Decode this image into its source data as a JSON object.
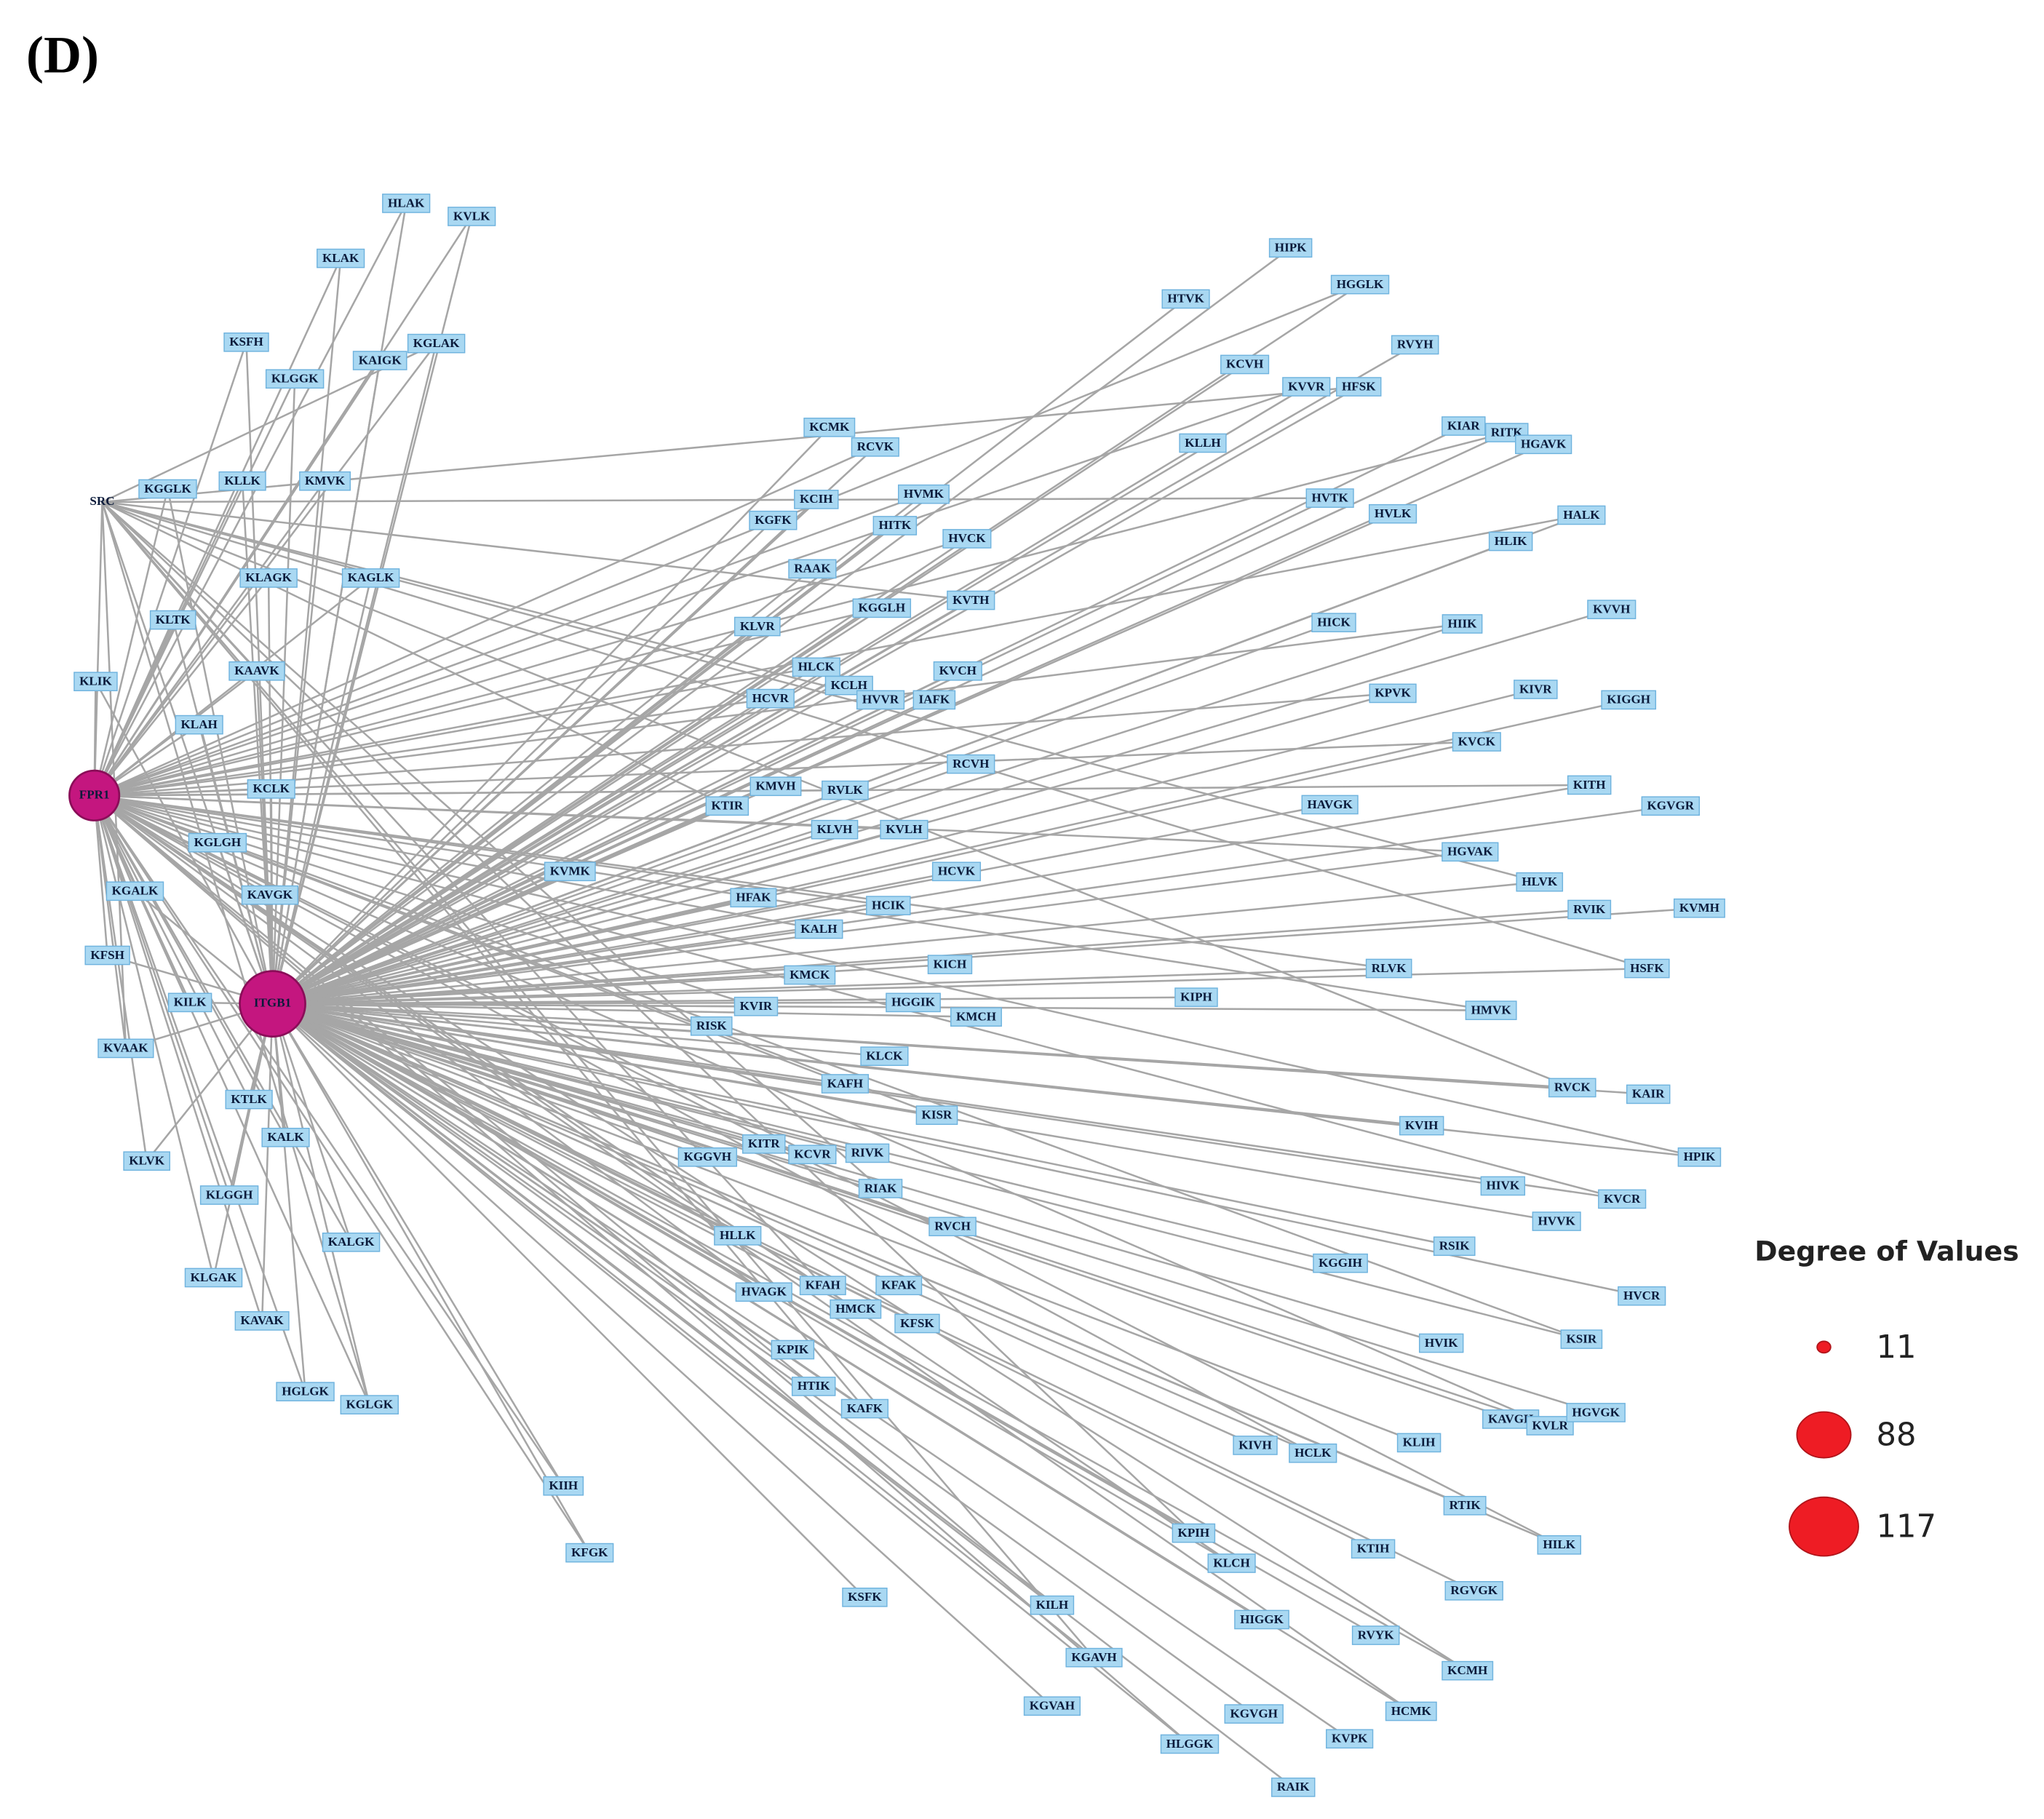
{
  "title": "(D)",
  "hubs": [
    {
      "label": "FPR1"
    },
    {
      "label": "ITGB1"
    },
    {
      "label": "SRC"
    }
  ],
  "nodes": [
    {
      "label": "HLAK"
    },
    {
      "label": "KVLK"
    },
    {
      "label": "KLAK"
    },
    {
      "label": "KSFH"
    },
    {
      "label": "KGLAK"
    },
    {
      "label": "KLGGK"
    },
    {
      "label": "KAIGK"
    },
    {
      "label": "KGGLK"
    },
    {
      "label": "KLLK"
    },
    {
      "label": "KMVK"
    },
    {
      "label": "KLAGK"
    },
    {
      "label": "KAGLK"
    },
    {
      "label": "KLTK"
    },
    {
      "label": "KAAVK"
    },
    {
      "label": "KLIK"
    },
    {
      "label": "KLAH"
    },
    {
      "label": "KCLK"
    },
    {
      "label": "KGLGH"
    },
    {
      "label": "KAVGK"
    },
    {
      "label": "KGALK"
    },
    {
      "label": "KFSH"
    },
    {
      "label": "KILK"
    },
    {
      "label": "KVAAK"
    },
    {
      "label": "KTLK"
    },
    {
      "label": "KALK"
    },
    {
      "label": "KLVK"
    },
    {
      "label": "KLGGH"
    },
    {
      "label": "KALGK"
    },
    {
      "label": "KLGAK"
    },
    {
      "label": "KAVAK"
    },
    {
      "label": "HGLGK"
    },
    {
      "label": "KGLGK"
    },
    {
      "label": "KIIH"
    },
    {
      "label": "KFGK"
    },
    {
      "label": "HIPK"
    },
    {
      "label": "HTVK"
    },
    {
      "label": "HGGLK"
    },
    {
      "label": "RVYH"
    },
    {
      "label": "KCVH"
    },
    {
      "label": "KVVR"
    },
    {
      "label": "HFSK"
    },
    {
      "label": "KIAR"
    },
    {
      "label": "RITK"
    },
    {
      "label": "HGAVK"
    },
    {
      "label": "KCMK"
    },
    {
      "label": "RCVK"
    },
    {
      "label": "KLLH"
    },
    {
      "label": "KCIH"
    },
    {
      "label": "HVMK"
    },
    {
      "label": "HVTK"
    },
    {
      "label": "HVLK"
    },
    {
      "label": "HALK"
    },
    {
      "label": "KGFK"
    },
    {
      "label": "HITK"
    },
    {
      "label": "HVCK"
    },
    {
      "label": "HLIK"
    },
    {
      "label": "RAAK"
    },
    {
      "label": "KGGLH"
    },
    {
      "label": "KVTH"
    },
    {
      "label": "HICK"
    },
    {
      "label": "HIIK"
    },
    {
      "label": "KVVH"
    },
    {
      "label": "KLVR"
    },
    {
      "label": "HLCK"
    },
    {
      "label": "KVCH"
    },
    {
      "label": "KCLH"
    },
    {
      "label": "HCVR"
    },
    {
      "label": "HVVR"
    },
    {
      "label": "IAFK"
    },
    {
      "label": "KPVK"
    },
    {
      "label": "KIVR"
    },
    {
      "label": "KIGGH"
    },
    {
      "label": "KVCK"
    },
    {
      "label": "RCVH"
    },
    {
      "label": "KMVH"
    },
    {
      "label": "RVLK"
    },
    {
      "label": "KTIR"
    },
    {
      "label": "HAVGK"
    },
    {
      "label": "KITH"
    },
    {
      "label": "KGVGR"
    },
    {
      "label": "KLVH"
    },
    {
      "label": "KVLH"
    },
    {
      "label": "KVMK"
    },
    {
      "label": "HCVK"
    },
    {
      "label": "HGVAK"
    },
    {
      "label": "HLVK"
    },
    {
      "label": "HFAK"
    },
    {
      "label": "HCIK"
    },
    {
      "label": "RVIK"
    },
    {
      "label": "KVMH"
    },
    {
      "label": "KALH"
    },
    {
      "label": "KICH"
    },
    {
      "label": "KMCK"
    },
    {
      "label": "RLVK"
    },
    {
      "label": "HSFK"
    },
    {
      "label": "KIPH"
    },
    {
      "label": "KVIR"
    },
    {
      "label": "HGGIK"
    },
    {
      "label": "KMCH"
    },
    {
      "label": "HMVK"
    },
    {
      "label": "RISK"
    },
    {
      "label": "KLCK"
    },
    {
      "label": "KAFH"
    },
    {
      "label": "RVCK"
    },
    {
      "label": "KAIR"
    },
    {
      "label": "KISR"
    },
    {
      "label": "KVIH"
    },
    {
      "label": "KITR"
    },
    {
      "label": "KCVR"
    },
    {
      "label": "RIVK"
    },
    {
      "label": "KGGVH"
    },
    {
      "label": "HPIK"
    },
    {
      "label": "RIAK"
    },
    {
      "label": "HIVK"
    },
    {
      "label": "KVCR"
    },
    {
      "label": "RVCH"
    },
    {
      "label": "HVVK"
    },
    {
      "label": "HLLK"
    },
    {
      "label": "RSIK"
    },
    {
      "label": "KGGIH"
    },
    {
      "label": "HVAGK"
    },
    {
      "label": "KFAH"
    },
    {
      "label": "KFAK"
    },
    {
      "label": "HMCK"
    },
    {
      "label": "KFSK"
    },
    {
      "label": "HVCR"
    },
    {
      "label": "KSIR"
    },
    {
      "label": "HVIK"
    },
    {
      "label": "KPIK"
    },
    {
      "label": "HTIK"
    },
    {
      "label": "KAFK"
    },
    {
      "label": "KAVGH"
    },
    {
      "label": "KVLR"
    },
    {
      "label": "HGVGK"
    },
    {
      "label": "KIVH"
    },
    {
      "label": "HCLK"
    },
    {
      "label": "KLIH"
    },
    {
      "label": "RTIK"
    },
    {
      "label": "HILK"
    },
    {
      "label": "KPIH"
    },
    {
      "label": "KTIH"
    },
    {
      "label": "KLCH"
    },
    {
      "label": "RGVGK"
    },
    {
      "label": "KSFK"
    },
    {
      "label": "KILH"
    },
    {
      "label": "HIGGK"
    },
    {
      "label": "RVYK"
    },
    {
      "label": "KCMH"
    },
    {
      "label": "KGAVH"
    },
    {
      "label": "KGVAH"
    },
    {
      "label": "HCMK"
    },
    {
      "label": "KGVGH"
    },
    {
      "label": "KVPK"
    },
    {
      "label": "HLGGK"
    },
    {
      "label": "RAIK"
    }
  ],
  "legend": {
    "title": "Degree of Values",
    "items": [
      11,
      88,
      117
    ]
  }
}
